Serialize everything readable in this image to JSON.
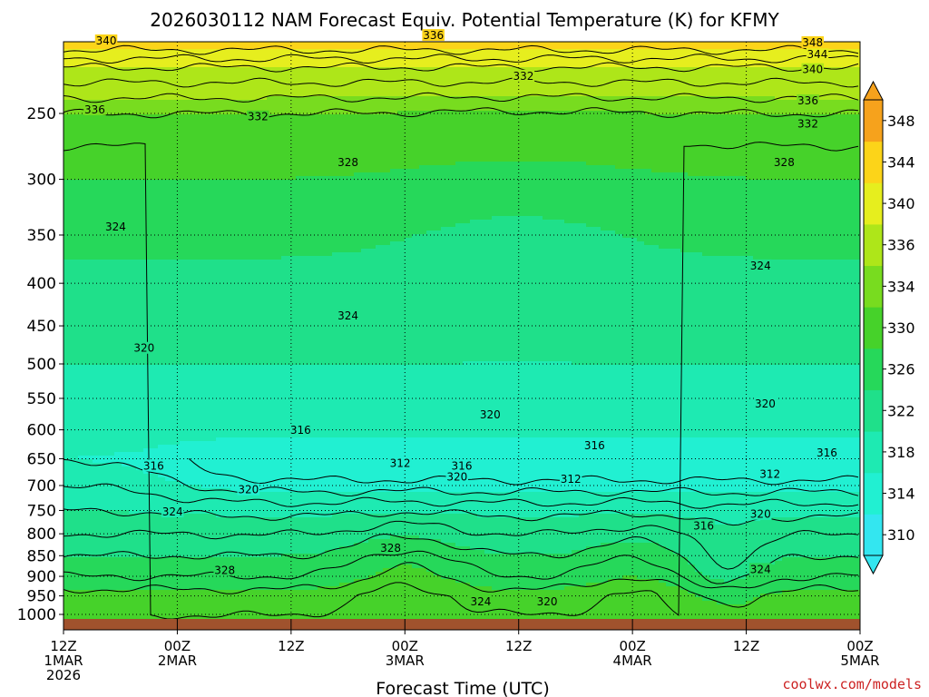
{
  "chart_data": {
    "type": "heatmap",
    "title": "2026030112 NAM Forecast Equiv. Potential Temperature (K) for KFMY",
    "xlabel": "Forecast Time (UTC)",
    "ylabel": "",
    "y_scale": "log-pressure",
    "ylim_hpa": [
      1000,
      200
    ],
    "yticks": [
      250,
      300,
      350,
      400,
      450,
      500,
      550,
      600,
      650,
      700,
      750,
      800,
      850,
      900,
      950,
      1000
    ],
    "ytick_labels": [
      "250",
      "300",
      "350",
      "400",
      "450",
      "500",
      "550",
      "600",
      "650",
      "700",
      "750",
      "800",
      "850",
      "900",
      "950",
      "1000"
    ],
    "x_hours": [
      0,
      12,
      24,
      36,
      48,
      60,
      72,
      84
    ],
    "xtick_labels": [
      [
        "12Z",
        "1MAR",
        "2026"
      ],
      [
        "00Z",
        "2MAR"
      ],
      [
        "12Z"
      ],
      [
        "00Z",
        "3MAR"
      ],
      [
        "12Z"
      ],
      [
        "00Z",
        "4MAR"
      ],
      [
        "12Z"
      ],
      [
        "00Z",
        "5MAR"
      ]
    ],
    "colorbar": {
      "levels": [
        310,
        314,
        318,
        322,
        326,
        330,
        334,
        336,
        340,
        344,
        348
      ],
      "labels": [
        "310",
        "314",
        "318",
        "322",
        "326",
        "330",
        "334",
        "336",
        "340",
        "344",
        "348"
      ],
      "colors": [
        "#33e6f0",
        "#21f0d2",
        "#1eeab2",
        "#1fe08a",
        "#26d85a",
        "#46d22a",
        "#78dc1f",
        "#aee619",
        "#e6ee1e",
        "#fcd419",
        "#f6a21c"
      ]
    },
    "profile_hpa": [
      1000,
      950,
      900,
      850,
      800,
      750,
      700,
      650,
      600,
      550,
      500,
      450,
      400,
      350,
      300,
      250,
      220,
      200
    ],
    "profile_theta_e": [
      332,
      331,
      328,
      326,
      324,
      322,
      320,
      318,
      320,
      321,
      322,
      323,
      325,
      327,
      330,
      334,
      340,
      348
    ],
    "contour_labels": [
      {
        "text": "340",
        "hour": 4.5,
        "hpa": 205
      },
      {
        "text": "336",
        "hour": 39,
        "hpa": 202
      },
      {
        "text": "348",
        "hour": 79,
        "hpa": 206
      },
      {
        "text": "344",
        "hour": 79.5,
        "hpa": 213
      },
      {
        "text": "340",
        "hour": 79,
        "hpa": 222
      },
      {
        "text": "336",
        "hour": 78.5,
        "hpa": 242
      },
      {
        "text": "332",
        "hour": 78.5,
        "hpa": 258
      },
      {
        "text": "332",
        "hour": 48.5,
        "hpa": 226
      },
      {
        "text": "336",
        "hour": 3.3,
        "hpa": 248
      },
      {
        "text": "332",
        "hour": 20.5,
        "hpa": 253
      },
      {
        "text": "328",
        "hour": 30,
        "hpa": 287
      },
      {
        "text": "328",
        "hour": 76,
        "hpa": 287
      },
      {
        "text": "324",
        "hour": 5.5,
        "hpa": 343
      },
      {
        "text": "324",
        "hour": 73.5,
        "hpa": 382
      },
      {
        "text": "324",
        "hour": 30,
        "hpa": 439
      },
      {
        "text": "320",
        "hour": 8.5,
        "hpa": 480
      },
      {
        "text": "320",
        "hour": 45,
        "hpa": 577
      },
      {
        "text": "320",
        "hour": 74,
        "hpa": 560
      },
      {
        "text": "316",
        "hour": 25,
        "hpa": 602
      },
      {
        "text": "316",
        "hour": 9.5,
        "hpa": 665
      },
      {
        "text": "316",
        "hour": 56,
        "hpa": 628
      },
      {
        "text": "316",
        "hour": 80.5,
        "hpa": 641
      },
      {
        "text": "312",
        "hour": 35.5,
        "hpa": 660
      },
      {
        "text": "316",
        "hour": 42,
        "hpa": 665
      },
      {
        "text": "320",
        "hour": 41.5,
        "hpa": 685
      },
      {
        "text": "312",
        "hour": 53.5,
        "hpa": 690
      },
      {
        "text": "312",
        "hour": 74.5,
        "hpa": 680
      },
      {
        "text": "320",
        "hour": 19.5,
        "hpa": 710
      },
      {
        "text": "324",
        "hour": 11.5,
        "hpa": 755
      },
      {
        "text": "316",
        "hour": 67.5,
        "hpa": 785
      },
      {
        "text": "320",
        "hour": 73.5,
        "hpa": 760
      },
      {
        "text": "328",
        "hour": 34.5,
        "hpa": 835
      },
      {
        "text": "328",
        "hour": 17,
        "hpa": 887
      },
      {
        "text": "324",
        "hour": 73.5,
        "hpa": 885
      },
      {
        "text": "324",
        "hour": 44,
        "hpa": 968
      },
      {
        "text": "320",
        "hour": 51,
        "hpa": 968
      }
    ]
  },
  "credit": "coolwx.com/models"
}
